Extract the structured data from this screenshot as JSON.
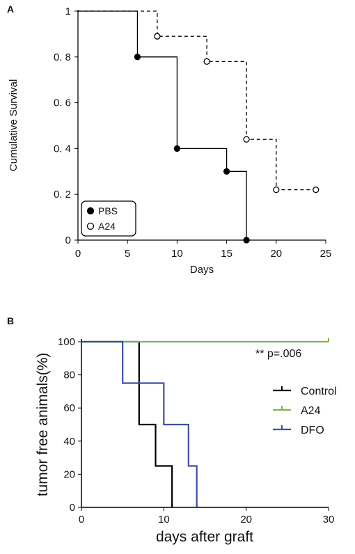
{
  "chart_data": [
    {
      "panel": "A",
      "type": "line",
      "step": true,
      "xlabel": "Days",
      "ylabel": "Cumulative Survival",
      "xlim": [
        0,
        25
      ],
      "ylim": [
        0,
        1
      ],
      "x_ticks": [
        "0",
        "5",
        "10",
        "15",
        "20",
        "25"
      ],
      "y_ticks": [
        "0",
        "0. 2",
        "0. 4",
        "0. 6",
        "0. 8",
        "1"
      ],
      "legend_position": "bottom-left",
      "grid": false,
      "series": [
        {
          "name": "PBS",
          "line": "solid",
          "marker": "filled-circle",
          "color": "#000000",
          "x": [
            0,
            6,
            10,
            15,
            17
          ],
          "y": [
            1,
            0.8,
            0.4,
            0.3,
            0
          ],
          "event_points": [
            [
              6,
              0.8
            ],
            [
              10,
              0.4
            ],
            [
              15,
              0.3
            ],
            [
              17,
              0
            ]
          ]
        },
        {
          "name": "A24",
          "line": "dashed",
          "marker": "open-circle",
          "color": "#000000",
          "x": [
            0,
            8,
            13,
            17,
            20,
            24
          ],
          "y": [
            1,
            0.89,
            0.78,
            0.44,
            0.22,
            0.22
          ],
          "event_points": [
            [
              8,
              0.89
            ],
            [
              13,
              0.78
            ],
            [
              17,
              0.44
            ],
            [
              20,
              0.22
            ],
            [
              24,
              0.22
            ]
          ]
        }
      ]
    },
    {
      "panel": "B",
      "type": "line",
      "step": true,
      "xlabel": "days after graft",
      "ylabel": "tumor free animals(%)",
      "xlim": [
        0,
        30
      ],
      "ylim": [
        0,
        100
      ],
      "x_ticks": [
        "0",
        "10",
        "20",
        "30"
      ],
      "y_ticks": [
        "0",
        "20",
        "40",
        "60",
        "80",
        "100"
      ],
      "annotation": "** p=.006",
      "legend_position": "right",
      "grid": false,
      "series": [
        {
          "name": "Control",
          "color": "#000000",
          "x": [
            0,
            7,
            9,
            11
          ],
          "y": [
            100,
            50,
            25,
            0
          ]
        },
        {
          "name": "A24",
          "color": "#7ab648",
          "x": [
            0,
            30
          ],
          "y": [
            100,
            100
          ]
        },
        {
          "name": "DFO",
          "color": "#3a4fa8",
          "x": [
            0,
            5,
            10,
            13,
            14
          ],
          "y": [
            100,
            75,
            50,
            25,
            0
          ]
        }
      ]
    }
  ]
}
